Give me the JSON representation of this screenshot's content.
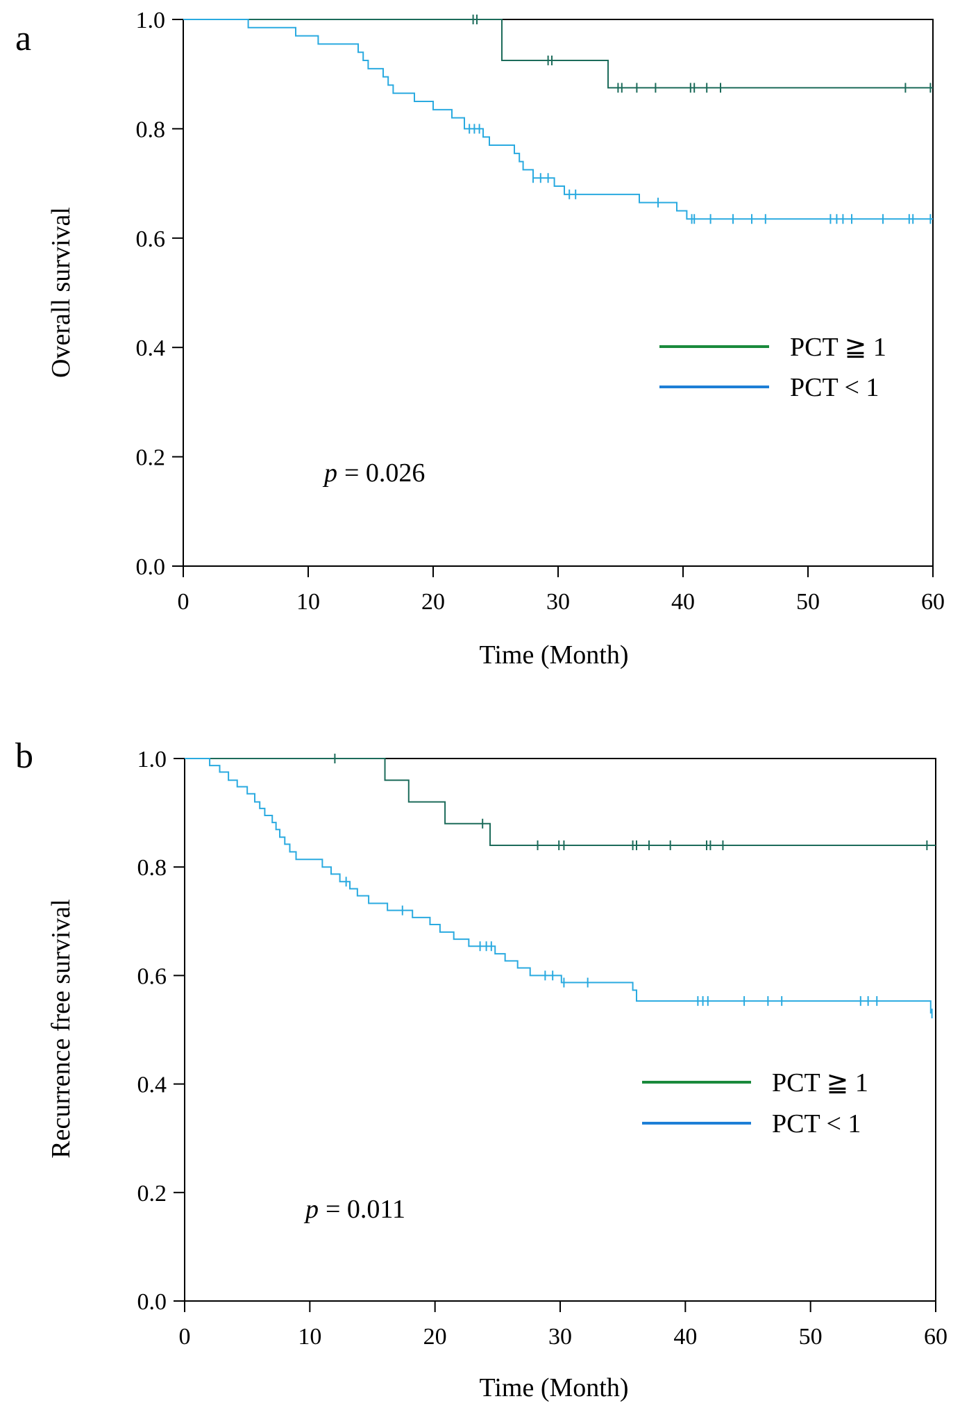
{
  "panels": [
    {
      "panel_label": "a",
      "p_value": "= 0.026",
      "p_symbol": "p",
      "legend": [
        {
          "label": "PCT ≧ 1",
          "color": "#1a8a3c"
        },
        {
          "label": "PCT < 1",
          "color": "#1e7fd6"
        }
      ]
    },
    {
      "panel_label": "b",
      "p_value": "= 0.011",
      "p_symbol": "p",
      "legend": [
        {
          "label": "PCT ≧ 1",
          "color": "#1a8a3c"
        },
        {
          "label": "PCT < 1",
          "color": "#1e7fd6"
        }
      ]
    }
  ],
  "chart_data": [
    {
      "type": "line",
      "subtype": "kaplan-meier step",
      "title": "",
      "xlabel": "Time (Month)",
      "ylabel": "Overall survival",
      "xlim": [
        0,
        60
      ],
      "ylim": [
        0,
        1.0
      ],
      "x_ticks": [
        "0",
        "10",
        "20",
        "30",
        "40",
        "50",
        "60"
      ],
      "y_ticks": [
        "0.0",
        "0.2",
        "0.4",
        "0.6",
        "0.8",
        "1.0"
      ],
      "legend_position": "center-right",
      "series": [
        {
          "name": "PCT ≧ 1",
          "color": "#1c6b5a",
          "steps": [
            [
              0,
              1.0
            ],
            [
              25.5,
              0.925
            ],
            [
              34.0,
              0.875
            ],
            [
              60,
              0.875
            ]
          ],
          "censors": [
            23.2,
            23.5,
            29.2,
            29.5,
            34.8,
            35.1,
            36.3,
            37.8,
            40.6,
            40.9,
            41.9,
            43.0,
            57.8,
            59.8
          ]
        },
        {
          "name": "PCT < 1",
          "color": "#2aaae0",
          "steps": [
            [
              0,
              1.0
            ],
            [
              5.2,
              0.985
            ],
            [
              9.0,
              0.97
            ],
            [
              10.8,
              0.955
            ],
            [
              14.0,
              0.94
            ],
            [
              14.4,
              0.925
            ],
            [
              14.8,
              0.91
            ],
            [
              16.0,
              0.895
            ],
            [
              16.4,
              0.88
            ],
            [
              16.8,
              0.865
            ],
            [
              18.5,
              0.85
            ],
            [
              20.0,
              0.835
            ],
            [
              21.5,
              0.82
            ],
            [
              22.5,
              0.8
            ],
            [
              24.0,
              0.785
            ],
            [
              24.5,
              0.77
            ],
            [
              26.5,
              0.755
            ],
            [
              26.9,
              0.74
            ],
            [
              27.2,
              0.725
            ],
            [
              28.0,
              0.71
            ],
            [
              29.7,
              0.695
            ],
            [
              30.5,
              0.68
            ],
            [
              36.5,
              0.665
            ],
            [
              39.5,
              0.65
            ],
            [
              40.3,
              0.635
            ],
            [
              60,
              0.635
            ]
          ],
          "censors": [
            22.9,
            23.3,
            23.7,
            28.0,
            28.6,
            29.2,
            30.9,
            31.4,
            38.0,
            40.7,
            40.9,
            42.2,
            44.0,
            45.5,
            46.6,
            51.8,
            52.3,
            52.8,
            53.5,
            56.0,
            58.1,
            58.4,
            59.8
          ]
        }
      ]
    },
    {
      "type": "line",
      "subtype": "kaplan-meier step",
      "title": "",
      "xlabel": "Time (Month)",
      "ylabel": "Recurrence free survival",
      "xlim": [
        0,
        60
      ],
      "ylim": [
        0,
        1.0
      ],
      "x_ticks": [
        "0",
        "10",
        "20",
        "30",
        "40",
        "50",
        "60"
      ],
      "y_ticks": [
        "0.0",
        "0.2",
        "0.4",
        "0.6",
        "0.8",
        "1.0"
      ],
      "legend_position": "center-right",
      "series": [
        {
          "name": "PCT ≧ 1",
          "color": "#1c6b5a",
          "steps": [
            [
              0,
              1.0
            ],
            [
              16.0,
              0.96
            ],
            [
              17.9,
              0.92
            ],
            [
              20.8,
              0.88
            ],
            [
              24.4,
              0.84
            ],
            [
              60,
              0.84
            ]
          ],
          "censors": [
            12.0,
            23.8,
            28.2,
            29.9,
            30.3,
            35.8,
            36.1,
            37.1,
            38.8,
            41.7,
            42.0,
            43.0,
            59.3
          ]
        },
        {
          "name": "PCT < 1",
          "color": "#2aaae0",
          "steps": [
            [
              0,
              1.0
            ],
            [
              2.0,
              0.987
            ],
            [
              2.8,
              0.975
            ],
            [
              3.5,
              0.96
            ],
            [
              4.2,
              0.948
            ],
            [
              5.0,
              0.935
            ],
            [
              5.6,
              0.92
            ],
            [
              6.0,
              0.908
            ],
            [
              6.4,
              0.895
            ],
            [
              7.0,
              0.882
            ],
            [
              7.3,
              0.869
            ],
            [
              7.6,
              0.855
            ],
            [
              8.0,
              0.842
            ],
            [
              8.4,
              0.828
            ],
            [
              8.9,
              0.814
            ],
            [
              11.0,
              0.8
            ],
            [
              11.7,
              0.787
            ],
            [
              12.4,
              0.773
            ],
            [
              13.2,
              0.76
            ],
            [
              13.8,
              0.747
            ],
            [
              14.7,
              0.733
            ],
            [
              16.2,
              0.72
            ],
            [
              18.2,
              0.707
            ],
            [
              19.6,
              0.694
            ],
            [
              20.4,
              0.68
            ],
            [
              21.5,
              0.667
            ],
            [
              22.7,
              0.654
            ],
            [
              24.8,
              0.64
            ],
            [
              25.6,
              0.627
            ],
            [
              26.6,
              0.614
            ],
            [
              27.6,
              0.6
            ],
            [
              30.1,
              0.587
            ],
            [
              35.8,
              0.573
            ],
            [
              36.1,
              0.553
            ],
            [
              59.2,
              0.553
            ],
            [
              59.6,
              0.53
            ]
          ],
          "censors": [
            12.9,
            17.4,
            23.6,
            24.1,
            24.5,
            28.8,
            29.4,
            30.3,
            32.2,
            41.0,
            41.4,
            41.8,
            44.7,
            46.6,
            47.7,
            54.0,
            54.6,
            55.3,
            59.7
          ]
        }
      ]
    }
  ]
}
